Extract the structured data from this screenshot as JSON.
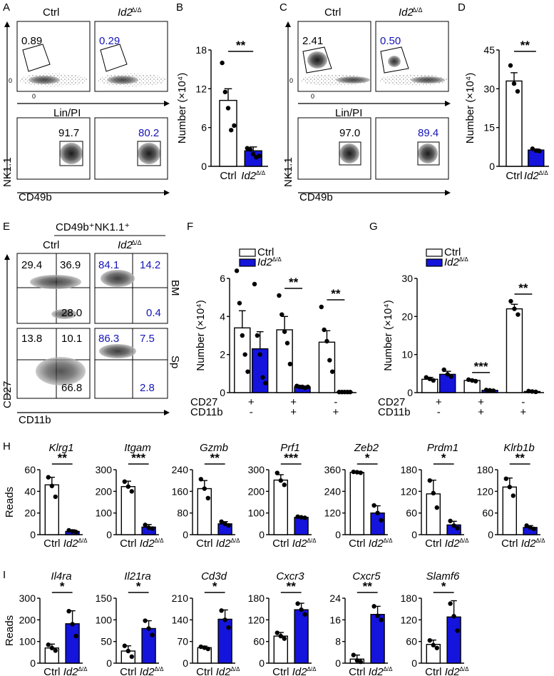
{
  "colors": {
    "ctrl": "#ffffff",
    "id2": "#1414dc",
    "dot": "#000000",
    "blue_text": "#1414b8"
  },
  "panel_letters": [
    "A",
    "B",
    "C",
    "D",
    "E",
    "F",
    "G",
    "H",
    "I"
  ],
  "flow": {
    "group_ctrl": "Ctrl",
    "group_id2": "Id2",
    "id2_sup": "Δ/Δ",
    "lin_pi": "Lin/PI",
    "cd49b": "CD49b",
    "nk11": "NK1.1",
    "zero": "0",
    "A": {
      "top": [
        "0.89",
        "0.29"
      ],
      "bottom": [
        "91.7",
        "80.2"
      ]
    },
    "C": {
      "top": [
        "2.41",
        "0.50"
      ],
      "bottom": [
        "97.0",
        "89.4"
      ]
    },
    "E": {
      "title": "CD49b⁺NK1.1⁺",
      "x_label": "CD11b",
      "y_label": "CD27",
      "row_labels": [
        "BM",
        "Sp"
      ],
      "BM": {
        "ctrl": [
          "29.4",
          "36.9",
          "28.0"
        ],
        "id2": [
          "84.1",
          "14.2",
          "0.4"
        ]
      },
      "Sp": {
        "ctrl": [
          "13.8",
          "10.1",
          "66.8"
        ],
        "id2": [
          "86.3",
          "7.5",
          "2.8"
        ]
      }
    }
  },
  "chart_data": [
    {
      "panel": "B",
      "type": "bar",
      "ylabel": "Number (×10⁴)",
      "ylim": [
        0,
        18
      ],
      "yticks": [
        0,
        6,
        12,
        18
      ],
      "categories": [
        "Ctrl",
        "Id2Δ/Δ"
      ],
      "values": [
        10.2,
        2.4
      ],
      "errors": [
        1.8,
        0.6
      ],
      "points": [
        [
          16.0,
          11.5,
          9.0,
          5.6,
          6.3
        ],
        [
          2.8,
          2.6,
          1.9,
          1.4,
          1.6
        ]
      ],
      "significance": "**"
    },
    {
      "panel": "D",
      "type": "bar",
      "ylabel": "Number (×10⁴)",
      "ylim": [
        0,
        45
      ],
      "yticks": [
        0,
        15,
        30,
        45
      ],
      "categories": [
        "Ctrl",
        "Id2Δ/Δ"
      ],
      "values": [
        33,
        6.3
      ],
      "errors": [
        3.2,
        0.4
      ],
      "points": [
        [
          39,
          32,
          29
        ],
        [
          6.8,
          6.1,
          5.9
        ]
      ],
      "significance": "**"
    },
    {
      "panel": "F",
      "type": "bar",
      "ylabel": "Number (×10⁴)",
      "ylim": [
        0,
        6
      ],
      "yticks": [
        0,
        2,
        4,
        6
      ],
      "legend": [
        "Ctrl",
        "Id2Δ/Δ"
      ],
      "row_labels": [
        "CD27",
        "CD11b"
      ],
      "groups": [
        {
          "markers": [
            "+",
            "-"
          ],
          "values": [
            3.4,
            2.3
          ],
          "errors": [
            0.9,
            0.9
          ],
          "points": [
            [
              6.4,
              4.7,
              3.0,
              2.0,
              1.1
            ],
            [
              5.7,
              3.0,
              2.0,
              0.8,
              0.5
            ]
          ],
          "significance": ""
        },
        {
          "markers": [
            "+",
            "+"
          ],
          "values": [
            3.3,
            0.3
          ],
          "errors": [
            0.7,
            0.05
          ],
          "points": [
            [
              5.1,
              4.1,
              3.2,
              2.6,
              1.5
            ],
            [
              0.35,
              0.3,
              0.3,
              0.25,
              0.3
            ]
          ],
          "significance": "**"
        },
        {
          "markers": [
            "-",
            "+"
          ],
          "values": [
            2.65,
            0.03
          ],
          "errors": [
            0.6,
            0.01
          ],
          "points": [
            [
              4.5,
              3.3,
              2.7,
              1.7,
              1.1
            ],
            [
              0.03,
              0.03,
              0.03,
              0.03,
              0.03
            ]
          ],
          "significance": "**"
        }
      ]
    },
    {
      "panel": "G",
      "type": "bar",
      "ylabel": "Number (×10⁴)",
      "ylim": [
        0,
        30
      ],
      "yticks": [
        0,
        10,
        20,
        30
      ],
      "legend": [
        "Ctrl",
        "Id2Δ/Δ"
      ],
      "row_labels": [
        "CD27",
        "CD11b"
      ],
      "groups": [
        {
          "markers": [
            "+",
            "-"
          ],
          "values": [
            3.5,
            4.8
          ],
          "errors": [
            0.5,
            0.8
          ],
          "points": [
            [
              4.0,
              3.6,
              3.2
            ],
            [
              6.0,
              4.8,
              4.2
            ]
          ],
          "significance": ""
        },
        {
          "markers": [
            "+",
            "+"
          ],
          "values": [
            3.2,
            0.6
          ],
          "errors": [
            0.2,
            0.1
          ],
          "points": [
            [
              3.4,
              3.2,
              3.0
            ],
            [
              0.7,
              0.6,
              0.5
            ]
          ],
          "significance": "***"
        },
        {
          "markers": [
            "-",
            "+"
          ],
          "values": [
            22,
            0.3
          ],
          "errors": [
            1.2,
            0.1
          ],
          "points": [
            [
              24,
              22,
              20.5
            ],
            [
              0.4,
              0.3,
              0.2
            ]
          ],
          "significance": "**"
        }
      ]
    },
    {
      "panel": "H",
      "type": "bar",
      "ylabel": "Reads",
      "categories": [
        "Ctrl",
        "Id2Δ/Δ"
      ],
      "genes": [
        {
          "gene": "Klrg1",
          "ylim": [
            0,
            60
          ],
          "yticks": [
            0,
            20,
            40,
            60
          ],
          "values": [
            46,
            3
          ],
          "errors": [
            7,
            1.5
          ],
          "points": [
            [
              53,
              45,
              35
            ],
            [
              4,
              3,
              2.5
            ]
          ],
          "significance": "**"
        },
        {
          "gene": "Itgam",
          "ylim": [
            0,
            300
          ],
          "yticks": [
            0,
            100,
            200,
            300
          ],
          "values": [
            222,
            35
          ],
          "errors": [
            25,
            12
          ],
          "points": [
            [
              245,
              222,
              200
            ],
            [
              45,
              32,
              28
            ]
          ],
          "significance": "***"
        },
        {
          "gene": "Gzmb",
          "ylim": [
            0,
            240
          ],
          "yticks": [
            0,
            80,
            160,
            240
          ],
          "values": [
            170,
            40
          ],
          "errors": [
            30,
            8
          ],
          "points": [
            [
              205,
              170,
              135
            ],
            [
              48,
              40,
              34
            ]
          ],
          "significance": "**"
        },
        {
          "gene": "Prf1",
          "ylim": [
            0,
            300
          ],
          "yticks": [
            0,
            100,
            200,
            300
          ],
          "values": [
            252,
            80
          ],
          "errors": [
            25,
            3
          ],
          "points": [
            [
              285,
              250,
              230
            ],
            [
              83,
              80,
              78
            ]
          ],
          "significance": "***"
        },
        {
          "gene": "Zeb2",
          "ylim": [
            0,
            360
          ],
          "yticks": [
            0,
            120,
            240,
            360
          ],
          "values": [
            345,
            120
          ],
          "errors": [
            5,
            40
          ],
          "points": [
            [
              348,
              346,
              343
            ],
            [
              162,
              120,
              80
            ]
          ],
          "significance": "*"
        },
        {
          "gene": "Prdm1",
          "ylim": [
            0,
            180
          ],
          "yticks": [
            0,
            60,
            120,
            180
          ],
          "values": [
            113,
            27
          ],
          "errors": [
            38,
            10
          ],
          "points": [
            [
              150,
              115,
              75
            ],
            [
              38,
              25,
              18
            ]
          ],
          "significance": "*"
        },
        {
          "gene": "Klrb1b",
          "ylim": [
            0,
            180
          ],
          "yticks": [
            0,
            60,
            120,
            180
          ],
          "values": [
            132,
            20
          ],
          "errors": [
            25,
            5
          ],
          "points": [
            [
              155,
              132,
              108
            ],
            [
              25,
              20,
              16
            ]
          ],
          "significance": "**"
        }
      ]
    },
    {
      "panel": "I",
      "type": "bar",
      "ylabel": "Reads",
      "categories": [
        "Ctrl",
        "Id2Δ/Δ"
      ],
      "genes": [
        {
          "gene": "Il4ra",
          "ylim": [
            0,
            300
          ],
          "yticks": [
            0,
            100,
            200,
            300
          ],
          "values": [
            70,
            182
          ],
          "errors": [
            18,
            60
          ],
          "points": [
            [
              85,
              70,
              58
            ],
            [
              240,
              180,
              125
            ]
          ],
          "significance": "*"
        },
        {
          "gene": "Il21ra",
          "ylim": [
            0,
            150
          ],
          "yticks": [
            0,
            50,
            100,
            150
          ],
          "values": [
            28,
            80
          ],
          "errors": [
            12,
            18
          ],
          "points": [
            [
              40,
              28,
              15
            ],
            [
              98,
              80,
              65
            ]
          ],
          "significance": "*"
        },
        {
          "gene": "Cd3d",
          "ylim": [
            0,
            210
          ],
          "yticks": [
            0,
            70,
            140,
            210
          ],
          "values": [
            50,
            142
          ],
          "errors": [
            5,
            30
          ],
          "points": [
            [
              53,
              50,
              46
            ],
            [
              170,
              140,
              115
            ]
          ],
          "significance": "*"
        },
        {
          "gene": "Cxcr3",
          "ylim": [
            0,
            180
          ],
          "yticks": [
            0,
            60,
            120,
            180
          ],
          "values": [
            75,
            148
          ],
          "errors": [
            10,
            18
          ],
          "points": [
            [
              84,
              75,
              68
            ],
            [
              165,
              148,
              135
            ]
          ],
          "significance": "**"
        },
        {
          "gene": "Cxcr5",
          "ylim": [
            0,
            24
          ],
          "yticks": [
            0,
            8,
            16,
            24
          ],
          "values": [
            1.5,
            18
          ],
          "errors": [
            1.5,
            3
          ],
          "points": [
            [
              3,
              1,
              0.5
            ],
            [
              21,
              17.5,
              16
            ]
          ],
          "significance": "**"
        },
        {
          "gene": "Slamf6",
          "ylim": [
            0,
            180
          ],
          "yticks": [
            0,
            60,
            120,
            180
          ],
          "values": [
            52,
            128
          ],
          "errors": [
            12,
            45
          ],
          "points": [
            [
              63,
              50,
              42
            ],
            [
              165,
              130,
              90
            ]
          ],
          "significance": "*"
        }
      ]
    }
  ]
}
